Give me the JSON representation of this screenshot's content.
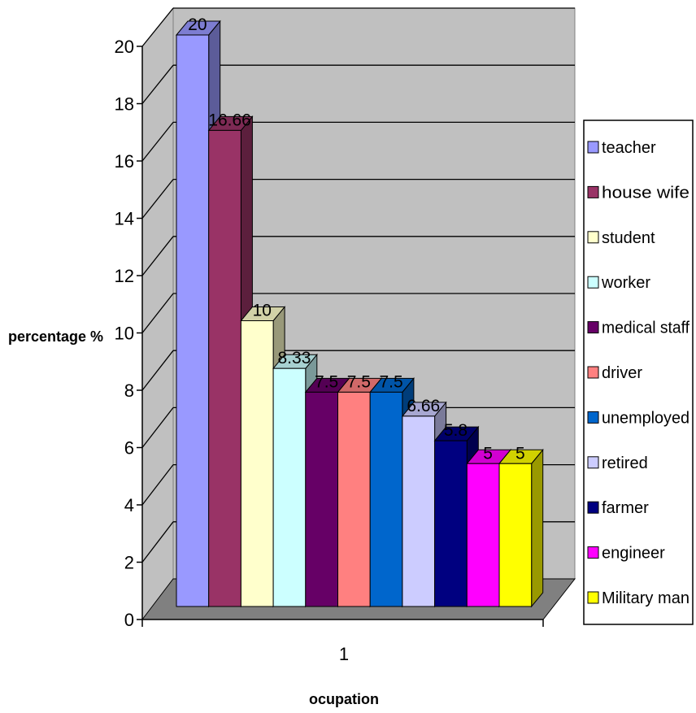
{
  "chart_data": {
    "type": "bar",
    "three_d": true,
    "title": "",
    "xlabel": "ocupation",
    "ylabel": "percentage  %",
    "categories": [
      "1"
    ],
    "ylim": [
      0,
      20
    ],
    "yticks": [
      0,
      2,
      4,
      6,
      8,
      10,
      12,
      14,
      16,
      18,
      20
    ],
    "grid": true,
    "legend_position": "right",
    "series": [
      {
        "name": "teacher",
        "values": [
          20
        ],
        "label": "20",
        "color": "#9999FF"
      },
      {
        "name": "house wife",
        "values": [
          16.66
        ],
        "label": "16.66",
        "color": "#993366"
      },
      {
        "name": "student",
        "values": [
          10
        ],
        "label": "10",
        "color": "#FFFFCC"
      },
      {
        "name": "worker",
        "values": [
          8.33
        ],
        "label": "8.33",
        "color": "#CCFFFF"
      },
      {
        "name": "medical staff",
        "values": [
          7.5
        ],
        "label": "7.5",
        "color": "#660066"
      },
      {
        "name": "driver",
        "values": [
          7.5
        ],
        "label": "7.5",
        "color": "#FF8080"
      },
      {
        "name": "unemployed",
        "values": [
          7.5
        ],
        "label": "7.5",
        "color": "#0066CC"
      },
      {
        "name": "retired",
        "values": [
          6.66
        ],
        "label": "6.66",
        "color": "#CCCCFF"
      },
      {
        "name": "farmer",
        "values": [
          5.8
        ],
        "label": "5.8",
        "color": "#000080"
      },
      {
        "name": "engineer",
        "values": [
          5
        ],
        "label": "5",
        "color": "#FF00FF"
      },
      {
        "name": "Military man",
        "values": [
          5
        ],
        "label": "5",
        "color": "#FFFF00"
      }
    ]
  }
}
